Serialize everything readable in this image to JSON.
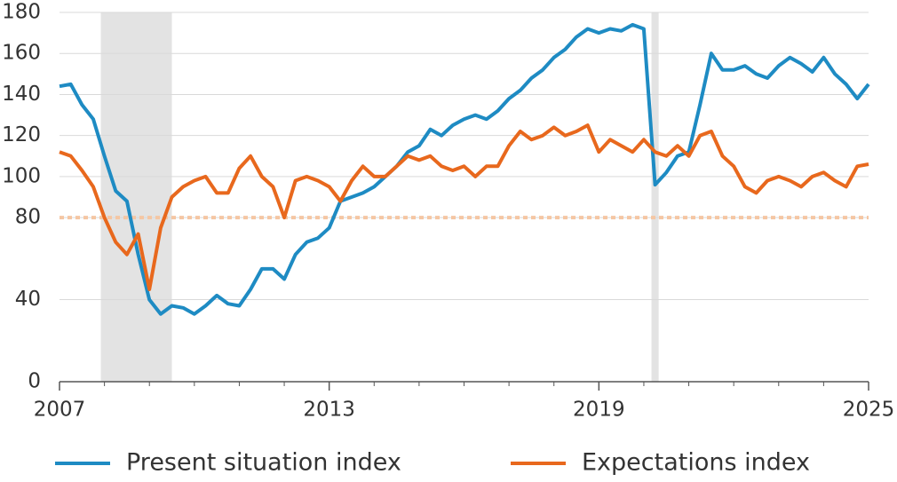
{
  "chart_data": {
    "type": "line",
    "x": [
      2007,
      2007.25,
      2007.5,
      2007.75,
      2008,
      2008.25,
      2008.5,
      2008.75,
      2009,
      2009.25,
      2009.5,
      2009.75,
      2010,
      2010.25,
      2010.5,
      2010.75,
      2011,
      2011.25,
      2011.5,
      2011.75,
      2012,
      2012.25,
      2012.5,
      2012.75,
      2013,
      2013.25,
      2013.5,
      2013.75,
      2014,
      2014.25,
      2014.5,
      2014.75,
      2015,
      2015.25,
      2015.5,
      2015.75,
      2016,
      2016.25,
      2016.5,
      2016.75,
      2017,
      2017.25,
      2017.5,
      2017.75,
      2018,
      2018.25,
      2018.5,
      2018.75,
      2019,
      2019.25,
      2019.5,
      2019.75,
      2020,
      2020.25,
      2020.5,
      2020.75,
      2021,
      2021.25,
      2021.5,
      2021.75,
      2022,
      2022.25,
      2022.5,
      2022.75,
      2023,
      2023.25,
      2023.5,
      2023.75,
      2024,
      2024.25,
      2024.5,
      2024.75,
      2025
    ],
    "series": [
      {
        "name": "Present situation index",
        "color": "#1e8bc3",
        "values": [
          144,
          145,
          135,
          128,
          110,
          93,
          88,
          62,
          40,
          33,
          37,
          36,
          33,
          37,
          42,
          38,
          37,
          45,
          55,
          55,
          50,
          62,
          68,
          70,
          75,
          88,
          90,
          92,
          95,
          100,
          105,
          112,
          115,
          123,
          120,
          125,
          128,
          130,
          128,
          132,
          138,
          142,
          148,
          152,
          158,
          162,
          168,
          172,
          170,
          172,
          171,
          174,
          172,
          96,
          102,
          110,
          112,
          135,
          160,
          152,
          152,
          154,
          150,
          148,
          154,
          158,
          155,
          151,
          158,
          150,
          145,
          138,
          145
        ]
      },
      {
        "name": "Expectations index",
        "color": "#e8681d",
        "values": [
          112,
          110,
          103,
          95,
          80,
          68,
          62,
          72,
          45,
          75,
          90,
          95,
          98,
          100,
          92,
          92,
          104,
          110,
          100,
          95,
          80,
          98,
          100,
          98,
          95,
          88,
          98,
          105,
          100,
          100,
          105,
          110,
          108,
          110,
          105,
          103,
          105,
          100,
          105,
          105,
          115,
          122,
          118,
          120,
          124,
          120,
          122,
          125,
          112,
          118,
          115,
          112,
          118,
          112,
          110,
          115,
          110,
          120,
          122,
          110,
          105,
          95,
          92,
          98,
          100,
          98,
          95,
          100,
          102,
          98,
          95,
          105,
          106
        ]
      }
    ],
    "xlim": [
      2007,
      2025
    ],
    "xticks": [
      2007,
      2013,
      2019,
      2025
    ],
    "minor_xticks": [
      2008,
      2009,
      2010,
      2011,
      2012,
      2014,
      2015,
      2016,
      2017,
      2018,
      2020,
      2021,
      2022,
      2023,
      2024
    ],
    "ylim": [
      0,
      180
    ],
    "yticks": [
      0,
      40,
      80,
      100,
      120,
      140,
      160,
      180
    ],
    "grid": true,
    "reference_line": {
      "value": 80,
      "color": "#f5c6a3"
    },
    "shaded_periods": [
      [
        2007.92,
        2009.5
      ],
      [
        2020.17,
        2020.33
      ]
    ],
    "shade_color": "#e3e3e3",
    "legend": "bottom"
  }
}
